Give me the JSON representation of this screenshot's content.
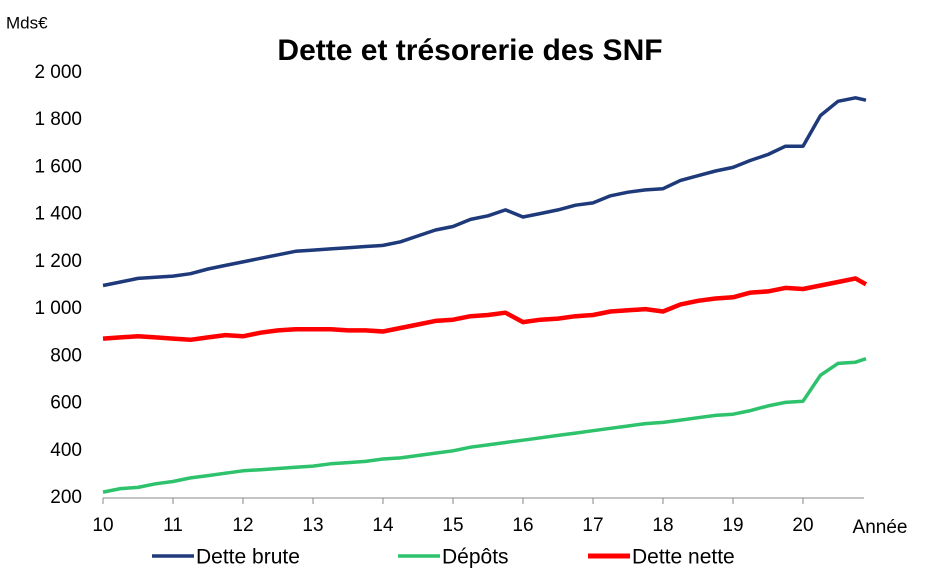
{
  "chart_data": {
    "type": "line",
    "title": "Dette et trésorerie des SNF",
    "y_label": "Mds€",
    "x_label": "Année",
    "x": [
      10,
      10.25,
      10.5,
      10.75,
      11,
      11.25,
      11.5,
      11.75,
      12,
      12.25,
      12.5,
      12.75,
      13,
      13.25,
      13.5,
      13.75,
      14,
      14.25,
      14.5,
      14.75,
      15,
      15.25,
      15.5,
      15.75,
      16,
      16.25,
      16.5,
      16.75,
      17,
      17.25,
      17.5,
      17.75,
      18,
      18.25,
      18.5,
      18.75,
      19,
      19.25,
      19.5,
      19.75,
      20,
      20.25,
      20.5,
      20.75,
      20.9
    ],
    "series": [
      {
        "name": "Dette brute",
        "color": "#1f3a7a",
        "values": [
          1100,
          1115,
          1130,
          1135,
          1140,
          1150,
          1170,
          1185,
          1200,
          1215,
          1230,
          1245,
          1250,
          1255,
          1260,
          1265,
          1270,
          1285,
          1310,
          1335,
          1350,
          1380,
          1395,
          1420,
          1390,
          1405,
          1420,
          1440,
          1450,
          1480,
          1495,
          1505,
          1510,
          1545,
          1565,
          1585,
          1600,
          1630,
          1655,
          1690,
          1690,
          1820,
          1880,
          1895,
          1885
        ]
      },
      {
        "name": "Dépôts",
        "color": "#2dc26b",
        "values": [
          225,
          240,
          245,
          260,
          270,
          285,
          295,
          305,
          315,
          320,
          325,
          330,
          335,
          345,
          350,
          355,
          365,
          370,
          380,
          390,
          400,
          415,
          425,
          435,
          445,
          455,
          465,
          475,
          485,
          495,
          505,
          515,
          520,
          530,
          540,
          550,
          555,
          570,
          590,
          605,
          610,
          720,
          770,
          775,
          790
        ]
      },
      {
        "name": "Dette nette",
        "color": "#ff0000",
        "values": [
          875,
          880,
          885,
          880,
          875,
          870,
          880,
          890,
          885,
          900,
          910,
          915,
          915,
          915,
          910,
          910,
          905,
          920,
          935,
          950,
          955,
          970,
          975,
          985,
          945,
          955,
          960,
          970,
          975,
          990,
          995,
          1000,
          990,
          1020,
          1035,
          1045,
          1050,
          1070,
          1075,
          1090,
          1085,
          1100,
          1115,
          1130,
          1105
        ]
      }
    ],
    "xlim": [
      10,
      21
    ],
    "xticks": [
      10,
      11,
      12,
      13,
      14,
      15,
      16,
      17,
      18,
      19,
      20
    ],
    "ylim": [
      200,
      2000
    ],
    "yticks": [
      {
        "value": 200,
        "label": "200"
      },
      {
        "value": 400,
        "label": "400"
      },
      {
        "value": 600,
        "label": "600"
      },
      {
        "value": 800,
        "label": "800"
      },
      {
        "value": 1000,
        "label": "1 000"
      },
      {
        "value": 1200,
        "label": "1 200"
      },
      {
        "value": 1400,
        "label": "1 400"
      },
      {
        "value": 1600,
        "label": "1 600"
      },
      {
        "value": 1800,
        "label": "1 800"
      },
      {
        "value": 2000,
        "label": "2 000"
      }
    ],
    "grid": false,
    "legend": "bottom"
  }
}
